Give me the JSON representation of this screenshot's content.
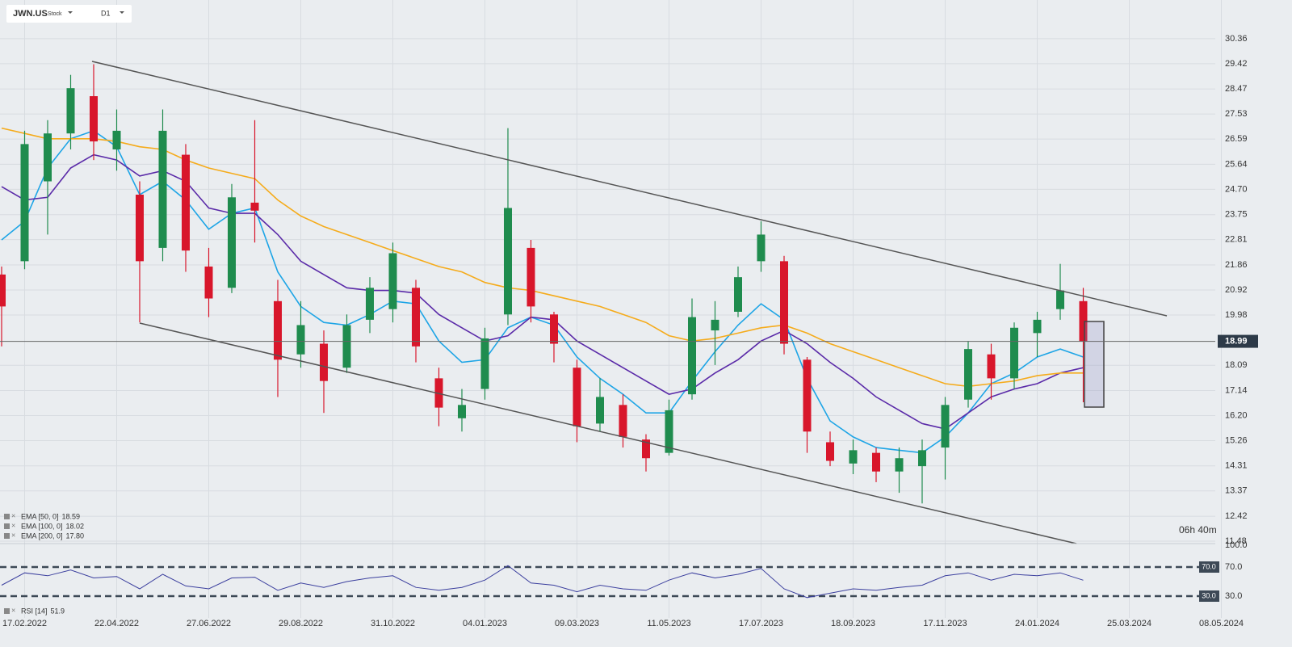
{
  "chart_data": {
    "type": "candlestick",
    "symbol": "JWN.US",
    "instrument_type": "Stock",
    "timeframe": "D1",
    "grid": true,
    "up_color": "#1f8c4e",
    "down_color": "#d8162b",
    "categories": [
      null,
      "17.02.2022",
      null,
      null,
      null,
      "22.04.2022",
      null,
      null,
      null,
      "27.06.2022",
      null,
      null,
      null,
      "29.08.2022",
      null,
      null,
      null,
      "31.10.2022",
      null,
      null,
      null,
      "04.01.2023",
      null,
      null,
      null,
      "09.03.2023",
      null,
      null,
      null,
      "11.05.2023",
      null,
      null,
      null,
      "17.07.2023",
      null,
      null,
      null,
      "18.09.2023",
      null,
      null,
      null,
      "17.11.2023",
      null,
      null,
      null,
      "24.01.2024",
      null,
      null,
      null,
      "25.03.2024",
      null,
      null,
      null,
      "08.05.2024"
    ],
    "open": [
      21.5,
      22.0,
      25.0,
      26.8,
      28.2,
      26.2,
      24.5,
      22.5,
      26.0,
      21.8,
      21.0,
      24.2,
      20.5,
      18.5,
      18.9,
      18.0,
      19.8,
      20.2,
      21.0,
      17.6,
      16.1,
      17.2,
      20.0,
      22.5,
      20.0,
      18.0,
      15.9,
      16.6,
      15.3,
      14.8,
      17.0,
      19.4,
      20.1,
      22.0,
      22.0,
      18.3,
      15.2,
      14.4,
      14.8,
      14.1,
      14.3,
      15.0,
      16.8,
      18.5,
      17.6,
      19.3,
      20.2,
      20.5,
      null,
      null,
      null,
      null,
      null,
      null
    ],
    "high": [
      21.8,
      26.9,
      27.3,
      29.0,
      29.4,
      27.7,
      25.0,
      27.7,
      26.4,
      22.5,
      24.9,
      27.3,
      21.3,
      20.5,
      19.4,
      20.0,
      21.4,
      22.7,
      21.3,
      18.0,
      17.2,
      19.5,
      27.0,
      22.8,
      20.1,
      18.3,
      17.6,
      17.0,
      15.5,
      16.8,
      20.6,
      20.5,
      21.8,
      23.5,
      22.2,
      18.4,
      15.6,
      15.3,
      15.0,
      15.0,
      15.3,
      16.9,
      19.0,
      18.9,
      19.7,
      20.1,
      21.9,
      21.0,
      null,
      null,
      null,
      null,
      null,
      null
    ],
    "low": [
      18.8,
      21.7,
      23.0,
      26.2,
      25.8,
      25.4,
      19.7,
      22.0,
      21.6,
      19.9,
      20.8,
      22.7,
      16.9,
      18.0,
      16.3,
      17.8,
      19.3,
      19.7,
      18.2,
      15.8,
      15.6,
      16.8,
      19.6,
      19.7,
      18.2,
      15.2,
      15.6,
      15.0,
      14.1,
      14.7,
      16.8,
      18.1,
      19.9,
      21.6,
      18.5,
      14.8,
      14.3,
      14.0,
      13.7,
      13.3,
      12.9,
      13.8,
      16.5,
      16.8,
      17.2,
      18.4,
      19.8,
      16.7,
      null,
      null,
      null,
      null,
      null,
      null
    ],
    "close": [
      20.3,
      26.4,
      26.8,
      28.5,
      26.5,
      26.9,
      22.0,
      26.9,
      22.4,
      20.6,
      24.4,
      23.9,
      18.3,
      19.6,
      17.5,
      19.6,
      21.0,
      22.3,
      18.8,
      16.5,
      16.6,
      19.1,
      24.0,
      20.3,
      18.9,
      15.8,
      16.9,
      15.4,
      14.6,
      16.4,
      19.9,
      19.8,
      21.4,
      23.0,
      18.9,
      15.6,
      14.5,
      14.9,
      14.1,
      14.6,
      14.9,
      16.6,
      18.7,
      17.6,
      19.5,
      19.8,
      20.9,
      18.99,
      null,
      null,
      null,
      null,
      null,
      null
    ],
    "series": [
      {
        "name": "EMA [50, 0]",
        "last_label": "18.59",
        "color": "#1ea5e6",
        "values": [
          22.8,
          23.5,
          25.5,
          26.6,
          26.9,
          26.3,
          24.5,
          25.0,
          24.3,
          23.2,
          23.8,
          24.0,
          21.6,
          20.3,
          19.7,
          19.6,
          20.0,
          20.5,
          20.4,
          19.0,
          18.2,
          18.3,
          19.5,
          19.9,
          19.6,
          18.4,
          17.6,
          17.0,
          16.3,
          16.3,
          17.5,
          18.6,
          19.6,
          20.4,
          19.8,
          17.6,
          16.0,
          15.4,
          15.0,
          14.9,
          14.8,
          15.4,
          16.3,
          17.4,
          17.8,
          18.4,
          18.7,
          18.4,
          null,
          null,
          null,
          null,
          null,
          null
        ]
      },
      {
        "name": "EMA [100, 0]",
        "last_label": "18.02",
        "color": "#5a2aa8",
        "values": [
          24.8,
          24.3,
          24.4,
          25.5,
          26.0,
          25.8,
          25.2,
          25.4,
          25.0,
          24.0,
          23.8,
          23.8,
          23.0,
          22.0,
          21.5,
          21.0,
          20.9,
          20.9,
          20.8,
          20.0,
          19.5,
          19.0,
          19.2,
          19.9,
          19.8,
          19.0,
          18.5,
          18.0,
          17.5,
          17.0,
          17.2,
          17.8,
          18.3,
          19.0,
          19.4,
          18.9,
          18.2,
          17.6,
          16.9,
          16.4,
          15.9,
          15.7,
          16.3,
          16.9,
          17.2,
          17.4,
          17.8,
          18.0,
          null,
          null,
          null,
          null,
          null,
          null
        ]
      },
      {
        "name": "EMA [200, 0]",
        "last_label": "17.80",
        "color": "#f5ab1b",
        "values": [
          27.0,
          26.8,
          26.6,
          26.6,
          26.6,
          26.5,
          26.3,
          26.2,
          25.8,
          25.5,
          25.3,
          25.1,
          24.3,
          23.7,
          23.3,
          23.0,
          22.7,
          22.4,
          22.1,
          21.8,
          21.6,
          21.2,
          21.0,
          20.9,
          20.7,
          20.5,
          20.3,
          20.0,
          19.7,
          19.2,
          19.0,
          19.1,
          19.3,
          19.5,
          19.6,
          19.3,
          18.9,
          18.6,
          18.3,
          18.0,
          17.7,
          17.4,
          17.3,
          17.4,
          17.5,
          17.7,
          17.8,
          17.8,
          null,
          null,
          null,
          null,
          null,
          null
        ]
      }
    ],
    "ylim": [
      11.33,
      31.57
    ],
    "yticks": [
      30.36,
      29.42,
      28.47,
      27.53,
      26.59,
      25.64,
      {
        "value": 24.7,
        "label": "24.70"
      },
      23.75,
      22.81,
      21.86,
      20.92,
      19.98,
      18.09,
      17.14,
      {
        "value": 16.2,
        "label": "16.20"
      },
      15.26,
      14.31,
      13.37,
      12.42,
      11.48
    ],
    "current_price": 18.99,
    "timer": "06h 40m",
    "rsi": {
      "name": "RSI [14]",
      "last_label": "51.9",
      "color": "#3b3f9e",
      "values": [
        45,
        62,
        58,
        66,
        55,
        57,
        40,
        60,
        44,
        40,
        55,
        56,
        38,
        48,
        42,
        50,
        55,
        58,
        42,
        38,
        42,
        52,
        72,
        48,
        45,
        36,
        45,
        40,
        38,
        52,
        62,
        55,
        60,
        68,
        40,
        28,
        34,
        40,
        38,
        42,
        45,
        58,
        62,
        52,
        60,
        58,
        62,
        51.9,
        null,
        null,
        null,
        null,
        null,
        null
      ],
      "ylim": [
        0,
        100
      ],
      "yticks": [
        {
          "value": 100,
          "label": "100.0"
        },
        {
          "value": 70,
          "label": "70.0"
        },
        {
          "value": 30,
          "label": "30.0"
        }
      ]
    }
  }
}
